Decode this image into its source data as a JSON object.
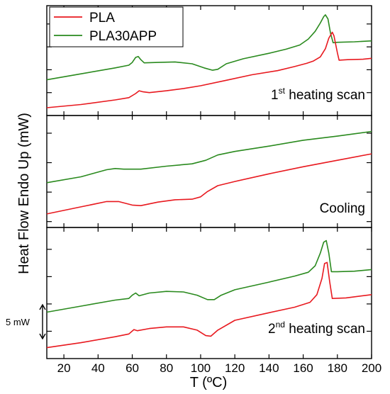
{
  "chart_data": {
    "type": "line",
    "xlabel": "T (ºC)",
    "ylabel": "Heat Flow Endo Up (mW)",
    "xlim": [
      10,
      200
    ],
    "x_ticks": [
      20,
      40,
      60,
      80,
      100,
      120,
      140,
      160,
      180,
      200
    ],
    "x_tick_labels": [
      "20",
      "40",
      "60",
      "80",
      "100",
      "120",
      "140",
      "160",
      "180",
      "200"
    ],
    "legend": {
      "placement": "top-left",
      "entries": [
        {
          "label": "PLA",
          "color": "#e8191f"
        },
        {
          "label": "PLA30APP",
          "color": "#2a8a1e"
        }
      ]
    },
    "scale_bar": {
      "label": "5 mW",
      "value_mW": 5
    },
    "grid": false,
    "panels": [
      {
        "label_main": "1",
        "label_sup": "st",
        "label_rest": " heating scan",
        "series": [
          {
            "name": "PLA30APP",
            "color": "#2a8a1e",
            "points": [
              [
                10,
                -7.2
              ],
              [
                30,
                -5.9
              ],
              [
                50,
                -4.6
              ],
              [
                58,
                -4.0
              ],
              [
                60,
                -3.4
              ],
              [
                62,
                -2.3
              ],
              [
                63.5,
                -2.1
              ],
              [
                65,
                -2.8
              ],
              [
                67,
                -3.5
              ],
              [
                75,
                -3.4
              ],
              [
                85,
                -3.3
              ],
              [
                95,
                -3.7
              ],
              [
                102,
                -4.6
              ],
              [
                107,
                -5.1
              ],
              [
                110,
                -4.9
              ],
              [
                115,
                -3.7
              ],
              [
                125,
                -2.6
              ],
              [
                140,
                -1.4
              ],
              [
                150,
                -0.5
              ],
              [
                158,
                0.4
              ],
              [
                163,
                1.7
              ],
              [
                167,
                3.4
              ],
              [
                170,
                5.2
              ],
              [
                172,
                6.6
              ],
              [
                173,
                7.0
              ],
              [
                174.5,
                6.1
              ],
              [
                176,
                3.0
              ],
              [
                177.5,
                0.9
              ],
              [
                180,
                1.0
              ],
              [
                190,
                1.1
              ],
              [
                200,
                1.3
              ]
            ]
          },
          {
            "name": "PLA",
            "color": "#e8191f",
            "points": [
              [
                10,
                -13.3
              ],
              [
                30,
                -12.6
              ],
              [
                50,
                -11.6
              ],
              [
                58,
                -11.1
              ],
              [
                62,
                -10.2
              ],
              [
                64,
                -9.6
              ],
              [
                66,
                -9.8
              ],
              [
                70,
                -10.0
              ],
              [
                80,
                -9.6
              ],
              [
                90,
                -9.1
              ],
              [
                100,
                -8.5
              ],
              [
                115,
                -7.3
              ],
              [
                130,
                -6.1
              ],
              [
                145,
                -5.2
              ],
              [
                155,
                -4.3
              ],
              [
                162,
                -3.6
              ],
              [
                166,
                -3.1
              ],
              [
                170,
                -2.2
              ],
              [
                173,
                -0.4
              ],
              [
                175,
                1.9
              ],
              [
                177,
                3.2
              ],
              [
                178,
                2.4
              ],
              [
                180,
                -1.3
              ],
              [
                181,
                -2.9
              ],
              [
                186,
                -2.8
              ],
              [
                195,
                -2.7
              ],
              [
                200,
                -2.5
              ]
            ]
          }
        ]
      },
      {
        "label_main": "Cooling",
        "label_sup": "",
        "label_rest": "",
        "series": [
          {
            "name": "PLA30APP",
            "color": "#2a8a1e",
            "points": [
              [
                10,
                -3.4
              ],
              [
                30,
                -2.4
              ],
              [
                45,
                -1.2
              ],
              [
                50,
                -1.0
              ],
              [
                55,
                -1.1
              ],
              [
                65,
                -1.1
              ],
              [
                80,
                -0.6
              ],
              [
                95,
                -0.2
              ],
              [
                103,
                0.4
              ],
              [
                110,
                1.3
              ],
              [
                120,
                1.9
              ],
              [
                140,
                2.8
              ],
              [
                160,
                3.8
              ],
              [
                180,
                4.5
              ],
              [
                200,
                5.3
              ]
            ]
          },
          {
            "name": "PLA",
            "color": "#e8191f",
            "points": [
              [
                10,
                -8.7
              ],
              [
                30,
                -7.5
              ],
              [
                45,
                -6.6
              ],
              [
                52,
                -6.6
              ],
              [
                60,
                -7.2
              ],
              [
                65,
                -7.3
              ],
              [
                75,
                -6.7
              ],
              [
                85,
                -6.3
              ],
              [
                95,
                -6.2
              ],
              [
                100,
                -5.8
              ],
              [
                104,
                -4.9
              ],
              [
                110,
                -3.9
              ],
              [
                120,
                -3.2
              ],
              [
                140,
                -1.9
              ],
              [
                160,
                -0.7
              ],
              [
                180,
                0.4
              ],
              [
                200,
                1.5
              ]
            ]
          }
        ]
      },
      {
        "label_main": "2",
        "label_sup": "nd",
        "label_rest": " heating scan",
        "series": [
          {
            "name": "PLA30APP",
            "color": "#2a8a1e",
            "points": [
              [
                10,
                -6.5
              ],
              [
                30,
                -5.4
              ],
              [
                50,
                -4.3
              ],
              [
                58,
                -4.0
              ],
              [
                60,
                -3.4
              ],
              [
                62,
                -3.0
              ],
              [
                64,
                -3.5
              ],
              [
                70,
                -3.0
              ],
              [
                80,
                -2.7
              ],
              [
                90,
                -2.8
              ],
              [
                98,
                -3.4
              ],
              [
                104,
                -4.2
              ],
              [
                108,
                -4.2
              ],
              [
                112,
                -3.4
              ],
              [
                120,
                -2.4
              ],
              [
                140,
                -1.0
              ],
              [
                155,
                0.1
              ],
              [
                163,
                0.8
              ],
              [
                167,
                2.0
              ],
              [
                170,
                4.3
              ],
              [
                172,
                6.3
              ],
              [
                173.5,
                6.6
              ],
              [
                175,
                4.3
              ],
              [
                176.5,
                0.9
              ],
              [
                180,
                0.9
              ],
              [
                190,
                1.0
              ],
              [
                200,
                1.3
              ]
            ]
          },
          {
            "name": "PLA",
            "color": "#e8191f",
            "points": [
              [
                10,
                -13.0
              ],
              [
                30,
                -12.1
              ],
              [
                50,
                -11.0
              ],
              [
                58,
                -10.5
              ],
              [
                61,
                -9.7
              ],
              [
                63,
                -9.9
              ],
              [
                70,
                -9.5
              ],
              [
                80,
                -9.2
              ],
              [
                90,
                -9.2
              ],
              [
                98,
                -9.8
              ],
              [
                103,
                -10.8
              ],
              [
                106,
                -10.9
              ],
              [
                110,
                -9.8
              ],
              [
                120,
                -8.0
              ],
              [
                140,
                -6.6
              ],
              [
                155,
                -5.6
              ],
              [
                164,
                -4.7
              ],
              [
                168,
                -3.3
              ],
              [
                171,
                -0.3
              ],
              [
                172.5,
                2.4
              ],
              [
                174,
                2.6
              ],
              [
                175.5,
                -0.9
              ],
              [
                177,
                -4.0
              ],
              [
                185,
                -3.9
              ],
              [
                200,
                -3.3
              ]
            ]
          }
        ]
      }
    ]
  }
}
